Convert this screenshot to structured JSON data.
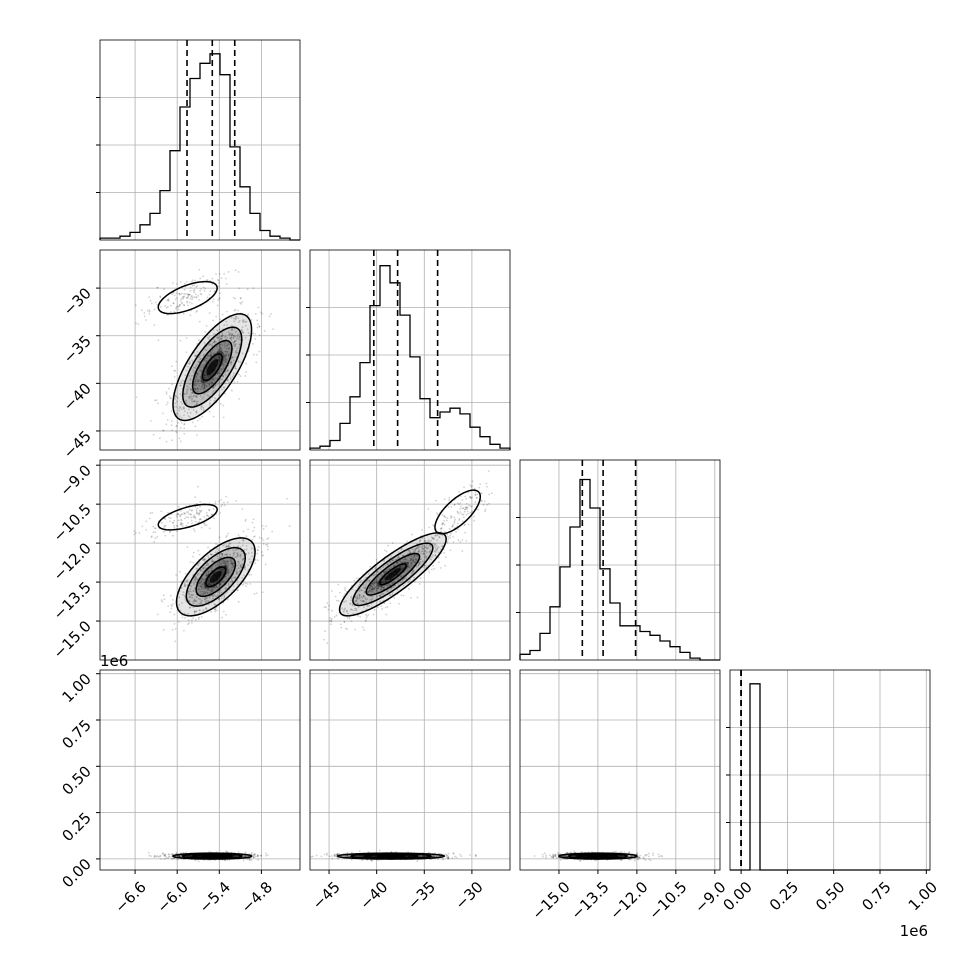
{
  "chart_data": {
    "type": "corner",
    "ndim": 4,
    "axis_offsets": {
      "1e6_vertical": "1e6",
      "1e6_horizontal": "1e6"
    },
    "params": [
      {
        "range": [
          -7.1,
          -4.25
        ],
        "ticks": [
          -6.6,
          -6.0,
          -5.4,
          -4.8
        ],
        "tick_labels": [
          "−6.6",
          "−6.0",
          "−5.4",
          "−4.8"
        ],
        "quantiles": [
          -5.86,
          -5.5,
          -5.18
        ],
        "hist": [
          0.01,
          0.01,
          0.02,
          0.04,
          0.08,
          0.14,
          0.26,
          0.47,
          0.7,
          0.85,
          0.93,
          0.98,
          0.87,
          0.49,
          0.28,
          0.14,
          0.05,
          0.02,
          0.01,
          0.0
        ]
      },
      {
        "range": [
          -47,
          -26
        ],
        "ticks": [
          -45,
          -40,
          -35,
          -30
        ],
        "tick_labels": [
          "−45",
          "−40",
          "−35",
          "−30"
        ],
        "quantiles": [
          -40.3,
          -37.8,
          -33.6
        ],
        "hist": [
          0.01,
          0.02,
          0.05,
          0.14,
          0.28,
          0.46,
          0.76,
          0.97,
          0.88,
          0.71,
          0.49,
          0.27,
          0.17,
          0.2,
          0.22,
          0.19,
          0.12,
          0.07,
          0.03,
          0.01
        ]
      },
      {
        "range": [
          -16.5,
          -8.8
        ],
        "ticks": [
          -15.0,
          -13.5,
          -12.0,
          -10.5,
          -9.0
        ],
        "tick_labels": [
          "−15.0",
          "−13.5",
          "−12.0",
          "−10.5",
          "−9.0"
        ],
        "quantiles": [
          -14.1,
          -13.3,
          -12.05
        ],
        "hist": [
          0.03,
          0.05,
          0.14,
          0.28,
          0.49,
          0.7,
          0.95,
          0.8,
          0.48,
          0.3,
          0.18,
          0.18,
          0.15,
          0.13,
          0.1,
          0.07,
          0.04,
          0.01,
          0.0,
          0.0
        ]
      },
      {
        "range": [
          -0.06,
          1.02
        ],
        "ticks": [
          0.0,
          0.25,
          0.5,
          0.75,
          1.0
        ],
        "tick_labels": [
          "0.00",
          "0.25",
          "0.50",
          "0.75",
          "1.00"
        ],
        "quantiles": [
          0.0,
          0.0,
          0.0
        ],
        "hist": [
          0.0,
          0.0,
          0.98,
          0.0,
          0.0,
          0.0,
          0.0,
          0.0,
          0.0,
          0.0,
          0.0,
          0.0,
          0.0,
          0.0,
          0.0,
          0.0,
          0.0,
          0.0,
          0.0,
          0.0
        ]
      }
    ],
    "pairs": [
      {
        "i": 1,
        "j": 0,
        "modes": [
          {
            "mean": [
              -5.5,
              -38.3
            ],
            "sd": [
              0.28,
              2.8
            ],
            "rho": 0.7,
            "w": 0.85
          },
          {
            "mean": [
              -5.85,
              -31.0
            ],
            "sd": [
              0.3,
              1.2
            ],
            "rho": 0.6,
            "w": 0.15
          }
        ]
      },
      {
        "i": 2,
        "j": 0,
        "modes": [
          {
            "mean": [
              -5.45,
              -13.3
            ],
            "sd": [
              0.28,
              0.75
            ],
            "rho": 0.65,
            "w": 0.85
          },
          {
            "mean": [
              -5.85,
              -11.0
            ],
            "sd": [
              0.3,
              0.35
            ],
            "rho": 0.6,
            "w": 0.15
          }
        ]
      },
      {
        "i": 2,
        "j": 1,
        "modes": [
          {
            "mean": [
              -38.3,
              -13.2
            ],
            "sd": [
              2.8,
              0.8
            ],
            "rho": 0.85,
            "w": 0.85
          },
          {
            "mean": [
              -31.5,
              -10.8
            ],
            "sd": [
              1.7,
              0.6
            ],
            "rho": 0.7,
            "w": 0.15
          }
        ]
      },
      {
        "i": 3,
        "j": 0,
        "modes": [
          {
            "mean": [
              -5.5,
              0.015
            ],
            "sd": [
              0.28,
              0.008
            ],
            "rho": 0.0,
            "w": 1.0
          }
        ]
      },
      {
        "i": 3,
        "j": 1,
        "modes": [
          {
            "mean": [
              -38.5,
              0.015
            ],
            "sd": [
              2.8,
              0.008
            ],
            "rho": 0.0,
            "w": 1.0
          }
        ]
      },
      {
        "i": 3,
        "j": 2,
        "modes": [
          {
            "mean": [
              -13.5,
              0.015
            ],
            "sd": [
              0.75,
              0.008
            ],
            "rho": 0.0,
            "w": 1.0
          }
        ]
      }
    ],
    "grid": true,
    "colors": {
      "line": "#000000",
      "grid": "#b0b0b0",
      "background": "#ffffff"
    }
  }
}
